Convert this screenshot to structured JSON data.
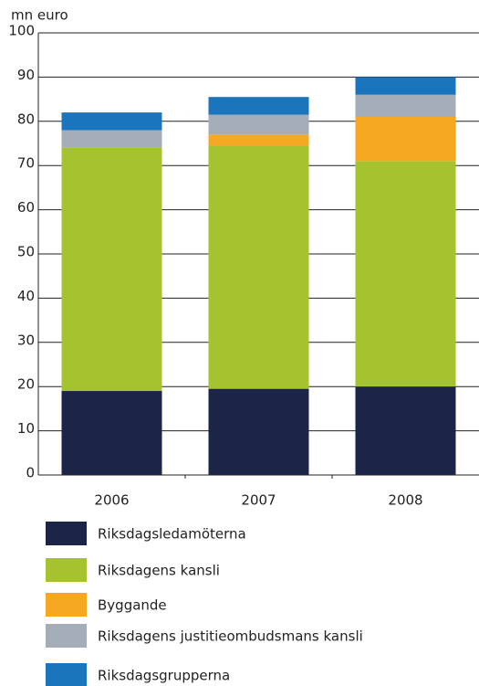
{
  "chart_data": {
    "type": "stacked_bar",
    "y_label": "mn euro",
    "categories": [
      "2006",
      "2007",
      "2008"
    ],
    "series": [
      {
        "name": "Riksdagsledamöterna",
        "color": "#1c2447",
        "values": [
          19,
          19.5,
          20
        ]
      },
      {
        "name": "Riksdagens kansli",
        "color": "#a5c32f",
        "values": [
          55,
          55,
          51
        ]
      },
      {
        "name": "Byggande",
        "color": "#f7a823",
        "values": [
          0,
          2.5,
          10
        ]
      },
      {
        "name": "Riksdagens justitieombudsmans kansli",
        "color": "#a5adb8",
        "values": [
          4,
          4.5,
          5
        ]
      },
      {
        "name": "Riksdagsgrupperna",
        "color": "#1b75bc",
        "values": [
          4,
          4,
          4
        ]
      }
    ],
    "ylim": [
      0,
      100
    ],
    "yticks": [
      0,
      10,
      20,
      30,
      40,
      50,
      60,
      70,
      80,
      90,
      100
    ],
    "grid": true
  }
}
